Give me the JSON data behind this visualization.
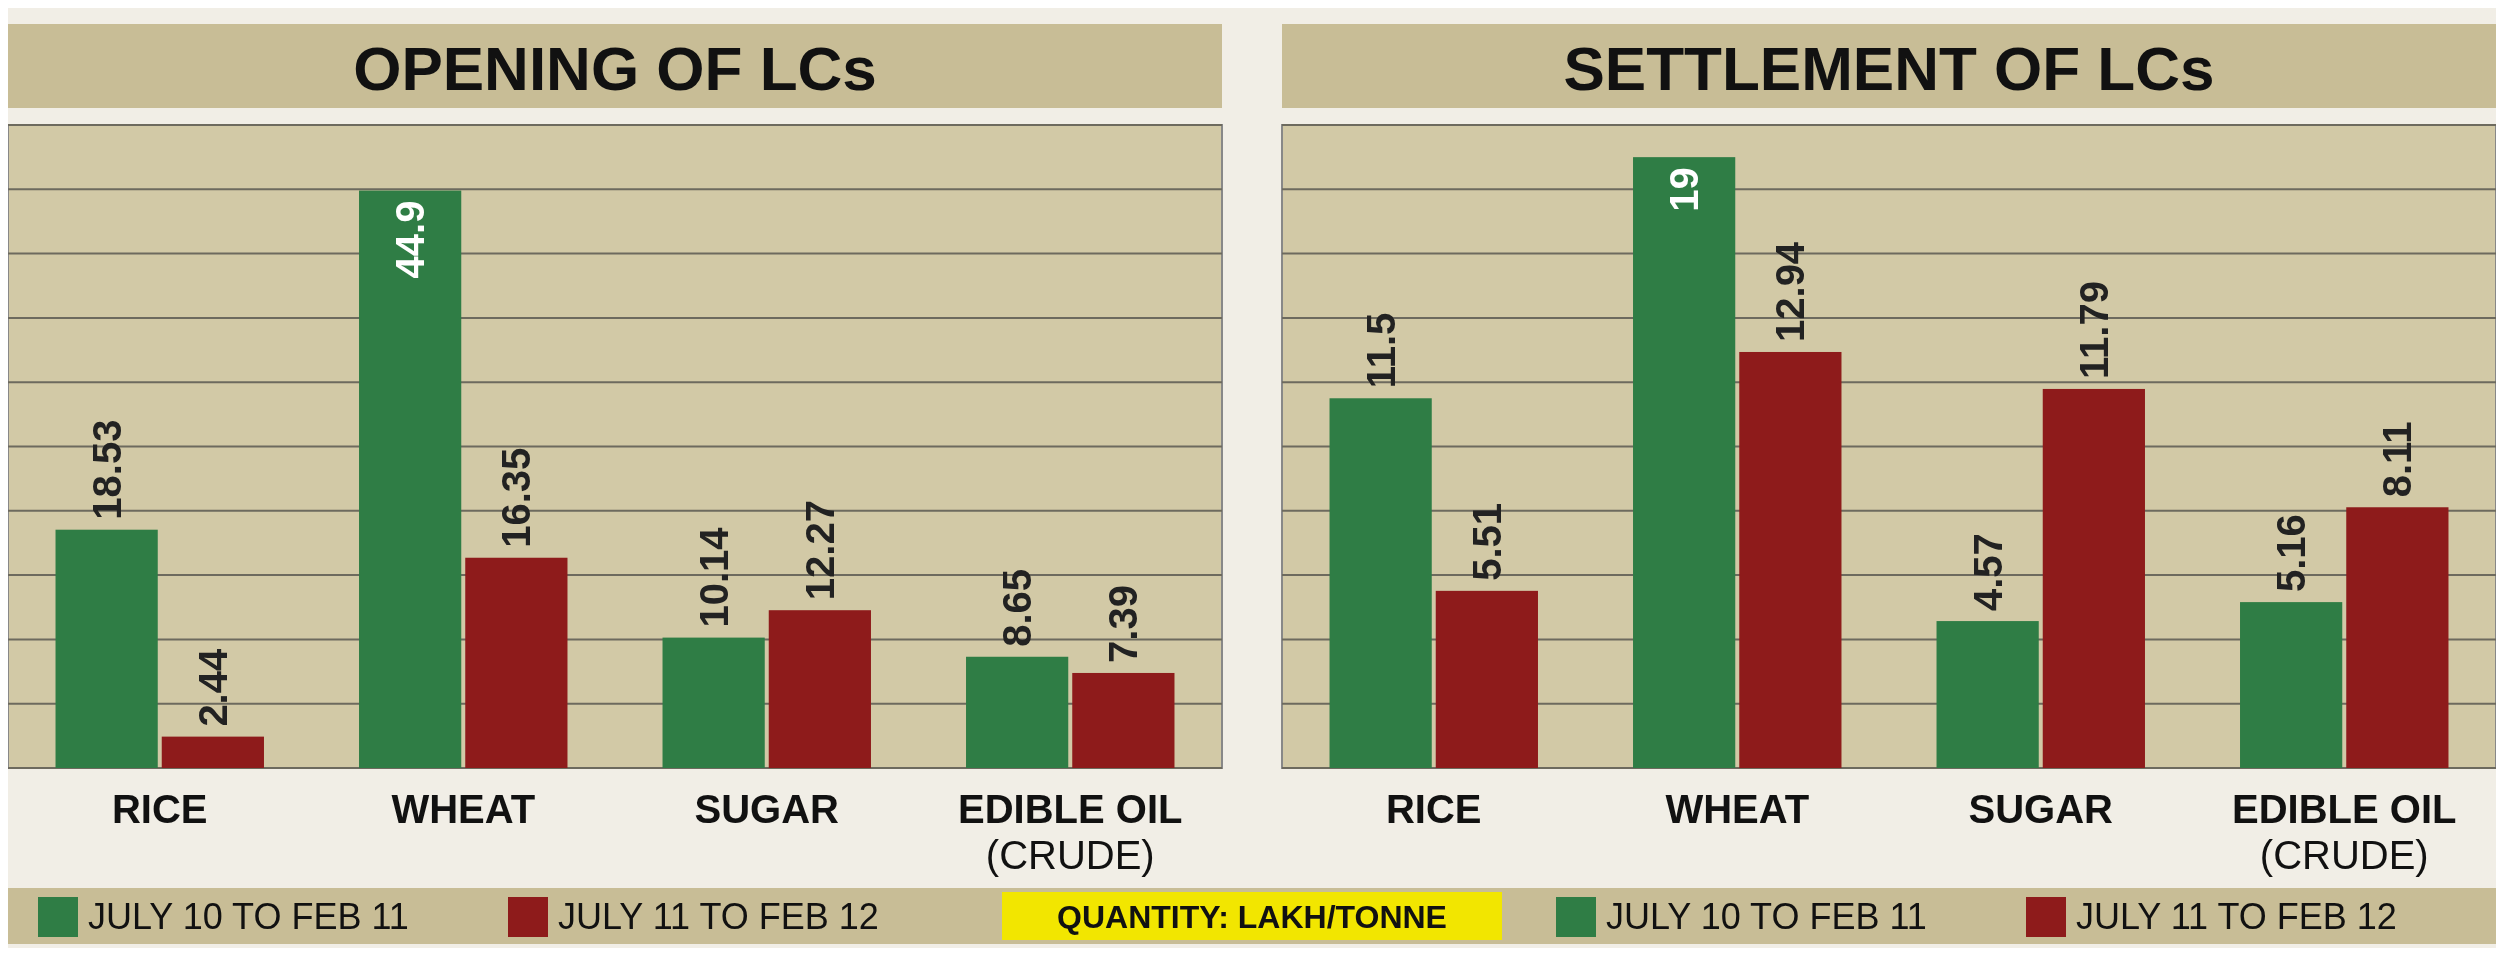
{
  "chart_data": [
    {
      "type": "bar",
      "title": "OPENING OF LCs",
      "categories": [
        "RICE",
        "WHEAT",
        "SUGAR",
        "EDIBLE OIL\n(CRUDE)"
      ],
      "series": [
        {
          "name": "JULY 10 TO FEB 11",
          "color": "#2f7d45",
          "values": [
            18.53,
            44.9,
            10.14,
            8.65
          ]
        },
        {
          "name": "JULY 11 TO FEB 12",
          "color": "#8e1b1b",
          "values": [
            2.44,
            16.35,
            12.27,
            7.39
          ]
        }
      ],
      "ylim": [
        0,
        50
      ],
      "yticks": [
        {
          "value": 0,
          "label": null
        },
        {
          "value": 5,
          "label": null
        },
        {
          "value": 10,
          "label": null
        },
        {
          "value": 15,
          "label": null
        },
        {
          "value": 20,
          "label": null
        },
        {
          "value": 25,
          "label": null
        },
        {
          "value": 30,
          "label": null
        },
        {
          "value": 35,
          "label": null
        },
        {
          "value": 40,
          "label": null
        },
        {
          "value": 45,
          "label": null
        },
        {
          "value": 50,
          "label": null
        }
      ],
      "tick_labels": "x",
      "grid": "y",
      "data_labels": true,
      "legend": "bottom",
      "annotations": [
        "QUANTITY: LAKH/TONNE"
      ]
    },
    {
      "type": "bar",
      "title": "SETTLEMENT OF LCs",
      "categories": [
        "RICE",
        "WHEAT",
        "SUGAR",
        "EDIBLE OIL\n(CRUDE)"
      ],
      "series": [
        {
          "name": "JULY 10 TO FEB 11",
          "color": "#2f7d45",
          "values": [
            11.5,
            19,
            4.57,
            5.16
          ]
        },
        {
          "name": "JULY 11 TO FEB 12",
          "color": "#8e1b1b",
          "values": [
            5.51,
            12.94,
            11.79,
            8.11
          ]
        }
      ],
      "ylim": [
        0,
        20
      ],
      "yticks": [
        {
          "value": 0,
          "label": null
        },
        {
          "value": 2,
          "label": null
        },
        {
          "value": 4,
          "label": null
        },
        {
          "value": 6,
          "label": null
        },
        {
          "value": 8,
          "label": null
        },
        {
          "value": 10,
          "label": null
        },
        {
          "value": 12,
          "label": null
        },
        {
          "value": 14,
          "label": null
        },
        {
          "value": 16,
          "label": null
        },
        {
          "value": 18,
          "label": null
        },
        {
          "value": 20,
          "label": null
        }
      ],
      "tick_labels": "x",
      "grid": "y",
      "data_labels": true,
      "legend": "bottom"
    }
  ]
}
